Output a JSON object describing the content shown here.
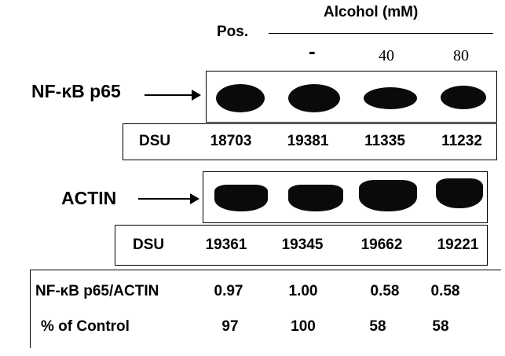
{
  "header": {
    "pos_label": "Pos.",
    "treatment_label": "Alcohol (mM)",
    "lanes": [
      "-",
      "40",
      "80"
    ]
  },
  "nfkb": {
    "label": "NF-κB p65",
    "dsu_label": "DSU",
    "dsu_values": [
      "18703",
      "19381",
      "11335",
      "11232"
    ]
  },
  "actin": {
    "label": "ACTIN",
    "dsu_label": "DSU",
    "dsu_values": [
      "19361",
      "19345",
      "19662",
      "19221"
    ]
  },
  "summary": {
    "ratio_label": "NF-κB p65/ACTIN",
    "ratio_values": [
      "0.97",
      "1.00",
      "0.58",
      "0.58"
    ],
    "percent_label": "% of Control",
    "percent_values": [
      "97",
      "100",
      "58",
      "58"
    ]
  }
}
